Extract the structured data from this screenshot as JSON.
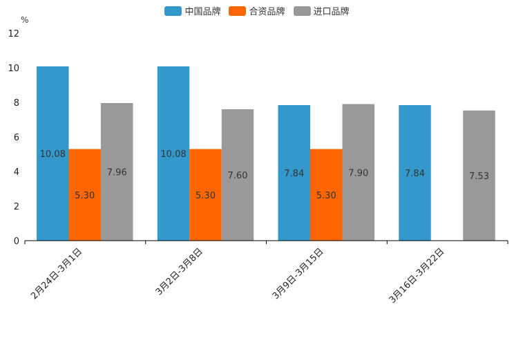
{
  "chart_data": {
    "type": "bar",
    "title": "",
    "unit_label": "%",
    "categories": [
      "2月24日-3月1日",
      "3月2日-3月8日",
      "3月9日-3月15日",
      "3月16日-3月22日"
    ],
    "series": [
      {
        "name": "中国品牌",
        "color": "#3398cc",
        "values": [
          10.08,
          10.08,
          7.84,
          7.84
        ]
      },
      {
        "name": "合资品牌",
        "color": "#ff6600",
        "values": [
          5.3,
          5.3,
          5.3,
          null
        ]
      },
      {
        "name": "进口品牌",
        "color": "#999999",
        "values": [
          7.96,
          7.6,
          7.9,
          7.53
        ]
      }
    ],
    "ylim": [
      0,
      12
    ],
    "yticks": [
      0,
      2,
      4,
      6,
      8,
      10,
      12
    ],
    "legend_position": "top-center",
    "grid": false
  }
}
